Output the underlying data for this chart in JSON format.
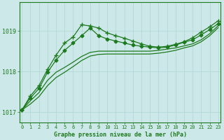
{
  "title": "Graphe pression niveau de la mer (hPa)",
  "bg_color": "#cce8e8",
  "grid_color": "#aed4d4",
  "line_color": "#1e7a1e",
  "xlim": [
    -0.3,
    23.3
  ],
  "ylim": [
    1016.75,
    1019.7
  ],
  "yticks": [
    1017,
    1018,
    1019
  ],
  "xticks": [
    0,
    1,
    2,
    3,
    4,
    5,
    6,
    7,
    8,
    9,
    10,
    11,
    12,
    13,
    14,
    15,
    16,
    17,
    18,
    19,
    20,
    21,
    22,
    23
  ],
  "series": [
    {
      "x": [
        0,
        1,
        2,
        3,
        4,
        5,
        6,
        7,
        8,
        9,
        10,
        11,
        12,
        13,
        14,
        15,
        16,
        17,
        18,
        19,
        20,
        21,
        22,
        23
      ],
      "y": [
        1017.05,
        1017.4,
        1017.65,
        1018.05,
        1018.4,
        1018.7,
        1018.85,
        1019.15,
        1019.12,
        1019.07,
        1018.95,
        1018.88,
        1018.82,
        1018.75,
        1018.68,
        1018.62,
        1018.6,
        1018.62,
        1018.67,
        1018.73,
        1018.83,
        1018.97,
        1019.1,
        1019.25
      ],
      "marker": "+",
      "markersize": 4,
      "lw": 0.9,
      "ls": "-"
    },
    {
      "x": [
        0,
        1,
        2,
        3,
        4,
        5,
        6,
        7,
        8,
        9,
        10,
        11,
        12,
        13,
        14,
        15,
        16,
        17,
        18,
        19,
        20,
        21,
        22,
        23
      ],
      "y": [
        1017.05,
        1017.35,
        1017.58,
        1017.98,
        1018.28,
        1018.52,
        1018.7,
        1018.88,
        1019.07,
        1018.88,
        1018.8,
        1018.75,
        1018.7,
        1018.65,
        1018.62,
        1018.6,
        1018.58,
        1018.6,
        1018.65,
        1018.72,
        1018.78,
        1018.9,
        1019.03,
        1019.18
      ],
      "marker": "D",
      "markersize": 2.5,
      "lw": 0.9,
      "ls": "-"
    },
    {
      "x": [
        0,
        1,
        2,
        3,
        4,
        5,
        6,
        7,
        8,
        9,
        10,
        11,
        12,
        13,
        14,
        15,
        16,
        17,
        18,
        19,
        20,
        21,
        22,
        23
      ],
      "y": [
        1017.05,
        1017.2,
        1017.38,
        1017.65,
        1017.85,
        1017.98,
        1018.12,
        1018.27,
        1018.38,
        1018.42,
        1018.43,
        1018.43,
        1018.43,
        1018.43,
        1018.43,
        1018.43,
        1018.45,
        1018.48,
        1018.52,
        1018.58,
        1018.63,
        1018.73,
        1018.88,
        1019.08
      ],
      "marker": null,
      "markersize": 0,
      "lw": 0.9,
      "ls": "-"
    },
    {
      "x": [
        0,
        1,
        2,
        3,
        4,
        5,
        6,
        7,
        8,
        9,
        10,
        11,
        12,
        13,
        14,
        15,
        16,
        17,
        18,
        19,
        20,
        21,
        22,
        23
      ],
      "y": [
        1017.05,
        1017.28,
        1017.48,
        1017.78,
        1017.98,
        1018.1,
        1018.23,
        1018.37,
        1018.47,
        1018.5,
        1018.5,
        1018.5,
        1018.5,
        1018.5,
        1018.5,
        1018.5,
        1018.52,
        1018.55,
        1018.58,
        1018.63,
        1018.68,
        1018.78,
        1018.93,
        1019.13
      ],
      "marker": null,
      "markersize": 0,
      "lw": 0.9,
      "ls": "-"
    }
  ]
}
